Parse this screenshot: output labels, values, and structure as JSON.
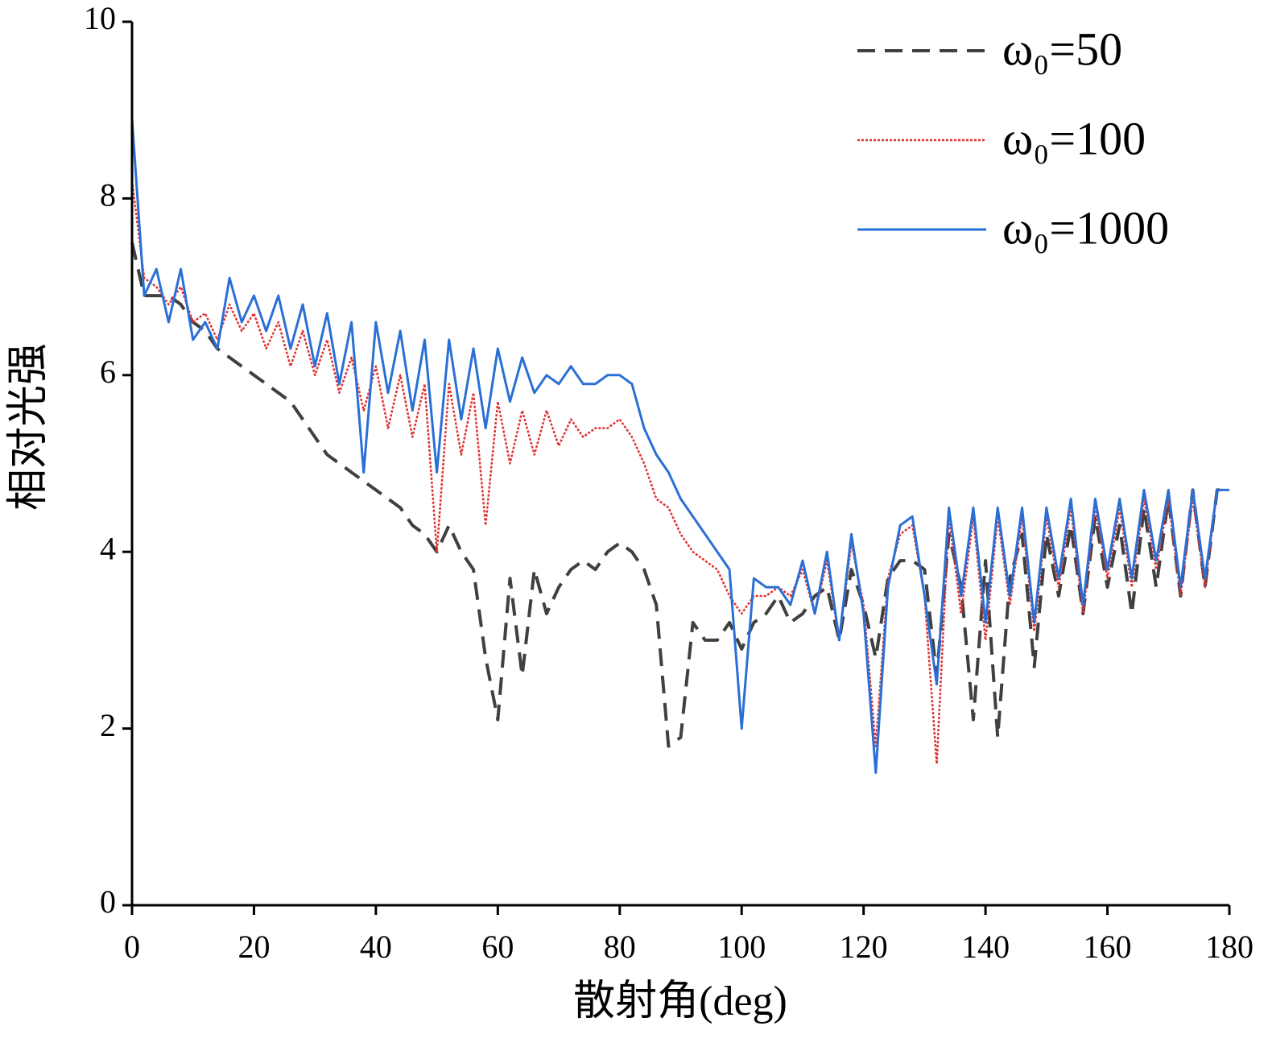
{
  "chart_data": {
    "type": "line",
    "x_label": "散射角(deg)",
    "y_label": "相对光强",
    "x": [
      0,
      2,
      4,
      6,
      8,
      10,
      12,
      14,
      16,
      18,
      20,
      22,
      24,
      26,
      28,
      30,
      32,
      34,
      36,
      38,
      40,
      42,
      44,
      46,
      48,
      50,
      52,
      54,
      56,
      58,
      60,
      62,
      64,
      66,
      68,
      70,
      72,
      74,
      76,
      78,
      80,
      82,
      84,
      86,
      88,
      90,
      92,
      94,
      96,
      98,
      100,
      102,
      104,
      106,
      108,
      110,
      112,
      114,
      116,
      118,
      120,
      122,
      124,
      126,
      128,
      130,
      132,
      134,
      136,
      138,
      140,
      142,
      144,
      146,
      148,
      150,
      152,
      154,
      156,
      158,
      160,
      162,
      164,
      166,
      168,
      170,
      172,
      174,
      176,
      178,
      180
    ],
    "series": [
      {
        "name": "ω₀=50",
        "color": "#404040",
        "line_style": "dashed",
        "values": [
          7.5,
          6.9,
          6.9,
          6.9,
          6.8,
          6.6,
          6.5,
          6.3,
          6.2,
          6.1,
          6.0,
          5.9,
          5.8,
          5.7,
          5.5,
          5.3,
          5.1,
          5.0,
          4.9,
          4.8,
          4.7,
          4.6,
          4.5,
          4.3,
          4.2,
          4.0,
          4.3,
          4.0,
          3.8,
          2.8,
          2.1,
          3.7,
          2.6,
          3.8,
          3.3,
          3.6,
          3.8,
          3.9,
          3.8,
          4.0,
          4.1,
          4.0,
          3.8,
          3.4,
          1.8,
          1.9,
          3.2,
          3.0,
          3.0,
          3.2,
          2.9,
          3.2,
          3.3,
          3.5,
          3.2,
          3.3,
          3.5,
          3.6,
          3.0,
          3.8,
          3.4,
          2.8,
          3.7,
          3.9,
          3.9,
          3.8,
          2.6,
          4.2,
          3.6,
          2.1,
          3.9,
          1.9,
          3.7,
          4.2,
          2.7,
          4.2,
          3.5,
          4.3,
          3.3,
          4.4,
          3.6,
          4.3,
          3.3,
          4.5,
          3.6,
          4.6,
          3.5,
          4.7,
          3.6,
          4.7,
          4.7
        ]
      },
      {
        "name": "ω₀=100",
        "color": "#e03030",
        "line_style": "dotted",
        "values": [
          8.2,
          7.1,
          7.0,
          6.8,
          7.0,
          6.6,
          6.7,
          6.4,
          6.8,
          6.5,
          6.7,
          6.3,
          6.6,
          6.1,
          6.5,
          6.0,
          6.4,
          5.8,
          6.2,
          5.6,
          6.1,
          5.4,
          6.0,
          5.3,
          5.9,
          4.0,
          5.9,
          5.1,
          5.8,
          4.3,
          5.7,
          5.0,
          5.6,
          5.1,
          5.6,
          5.2,
          5.5,
          5.3,
          5.4,
          5.4,
          5.5,
          5.3,
          5.0,
          4.6,
          4.5,
          4.2,
          4.0,
          3.9,
          3.8,
          3.5,
          3.3,
          3.5,
          3.5,
          3.6,
          3.5,
          3.8,
          3.3,
          3.9,
          3.0,
          4.1,
          3.4,
          1.8,
          3.7,
          4.2,
          4.3,
          3.5,
          1.6,
          4.4,
          3.3,
          4.4,
          3.0,
          4.4,
          3.4,
          4.4,
          3.1,
          4.4,
          3.6,
          4.5,
          3.3,
          4.5,
          3.7,
          4.5,
          3.6,
          4.6,
          3.8,
          4.6,
          3.5,
          4.6,
          3.6,
          4.7,
          4.7
        ]
      },
      {
        "name": "ω₀=1000",
        "color": "#2a6fd6",
        "line_style": "solid",
        "values": [
          8.9,
          6.9,
          7.2,
          6.6,
          7.2,
          6.4,
          6.6,
          6.3,
          7.1,
          6.6,
          6.9,
          6.5,
          6.9,
          6.3,
          6.8,
          6.1,
          6.7,
          5.9,
          6.6,
          4.9,
          6.6,
          5.8,
          6.5,
          5.6,
          6.4,
          4.9,
          6.4,
          5.5,
          6.3,
          5.4,
          6.3,
          5.7,
          6.2,
          5.8,
          6.0,
          5.9,
          6.1,
          5.9,
          5.9,
          6.0,
          6.0,
          5.9,
          5.4,
          5.1,
          4.9,
          4.6,
          4.4,
          4.2,
          4.0,
          3.8,
          2.0,
          3.7,
          3.6,
          3.6,
          3.4,
          3.9,
          3.3,
          4.0,
          3.0,
          4.2,
          3.3,
          1.5,
          3.6,
          4.3,
          4.4,
          3.5,
          2.5,
          4.5,
          3.5,
          4.5,
          3.2,
          4.5,
          3.5,
          4.5,
          3.2,
          4.5,
          3.7,
          4.6,
          3.4,
          4.6,
          3.8,
          4.6,
          3.7,
          4.7,
          3.9,
          4.7,
          3.6,
          4.7,
          3.7,
          4.7,
          4.7
        ]
      }
    ],
    "xlim": [
      0,
      180
    ],
    "xticks": [
      0,
      20,
      40,
      60,
      80,
      100,
      120,
      140,
      160,
      180
    ],
    "ylim": [
      0,
      10
    ],
    "yticks": [
      0,
      2,
      4,
      6,
      8,
      10
    ],
    "legend": "upper right"
  }
}
